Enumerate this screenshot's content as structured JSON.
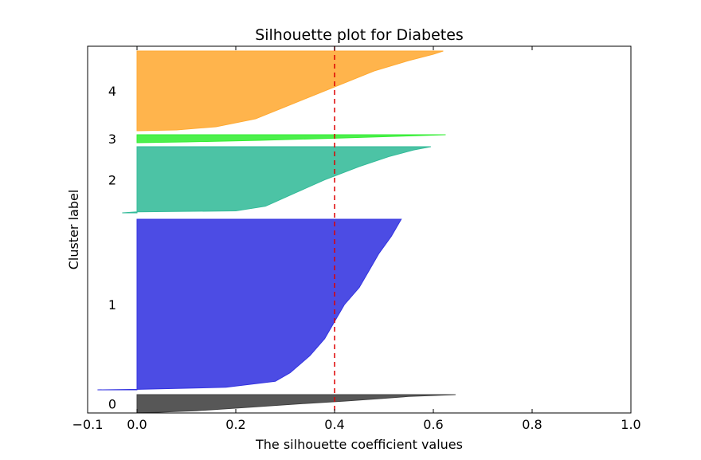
{
  "chart_data": {
    "type": "area",
    "title": "Silhouette plot for Diabetes",
    "xlabel": "The silhouette coefficient values",
    "ylabel": "Cluster label",
    "xlim": [
      -0.1,
      1.0
    ],
    "xticks": [
      "−0.1",
      "0.0",
      "0.2",
      "0.4",
      "0.6",
      "0.8",
      "1.0"
    ],
    "xtick_values": [
      -0.1,
      0.0,
      0.2,
      0.4,
      0.6,
      0.8,
      1.0
    ],
    "grid": false,
    "legend": "none",
    "average_silhouette": 0.4,
    "average_line_color": "#dd0000",
    "clusters": [
      {
        "label": "0",
        "color": "#404040",
        "band": [
          0,
          46
        ],
        "profile": [
          [
            0,
            0.0
          ],
          [
            0.12,
            0.12
          ],
          [
            0.3,
            0.22
          ],
          [
            0.5,
            0.33
          ],
          [
            0.65,
            0.42
          ],
          [
            0.8,
            0.5
          ],
          [
            0.9,
            0.55
          ],
          [
            1.0,
            0.645
          ]
        ]
      },
      {
        "label": "1",
        "color": "#3333e0",
        "band": [
          58,
          486
        ],
        "profile": [
          [
            0,
            -0.08
          ],
          [
            0.003,
            0.0
          ],
          [
            0.015,
            0.18
          ],
          [
            0.05,
            0.28
          ],
          [
            0.1,
            0.31
          ],
          [
            0.2,
            0.35
          ],
          [
            0.3,
            0.38
          ],
          [
            0.4,
            0.4
          ],
          [
            0.5,
            0.42
          ],
          [
            0.6,
            0.45
          ],
          [
            0.7,
            0.47
          ],
          [
            0.8,
            0.49
          ],
          [
            0.9,
            0.515
          ],
          [
            1.0,
            0.535
          ]
        ]
      },
      {
        "label": "2",
        "color": "#33bb99",
        "band": [
          502,
          668
        ],
        "profile": [
          [
            0,
            -0.03
          ],
          [
            0.015,
            0.0
          ],
          [
            0.03,
            0.2
          ],
          [
            0.1,
            0.26
          ],
          [
            0.3,
            0.32
          ],
          [
            0.5,
            0.38
          ],
          [
            0.7,
            0.45
          ],
          [
            0.85,
            0.51
          ],
          [
            0.95,
            0.56
          ],
          [
            1.0,
            0.595
          ]
        ]
      },
      {
        "label": "3",
        "color": "#33ee33",
        "band": [
          678,
          698
        ],
        "profile": [
          [
            0,
            0.0
          ],
          [
            0.1,
            0.1
          ],
          [
            0.3,
            0.25
          ],
          [
            0.6,
            0.42
          ],
          [
            0.85,
            0.55
          ],
          [
            1.0,
            0.625
          ]
        ]
      },
      {
        "label": "4",
        "color": "#ffaa33",
        "band": [
          708,
          908
        ],
        "profile": [
          [
            0,
            0.0
          ],
          [
            0.01,
            0.08
          ],
          [
            0.05,
            0.16
          ],
          [
            0.15,
            0.24
          ],
          [
            0.3,
            0.3
          ],
          [
            0.45,
            0.36
          ],
          [
            0.6,
            0.42
          ],
          [
            0.75,
            0.48
          ],
          [
            0.88,
            0.55
          ],
          [
            0.96,
            0.6
          ],
          [
            1.0,
            0.62
          ]
        ]
      }
    ]
  }
}
